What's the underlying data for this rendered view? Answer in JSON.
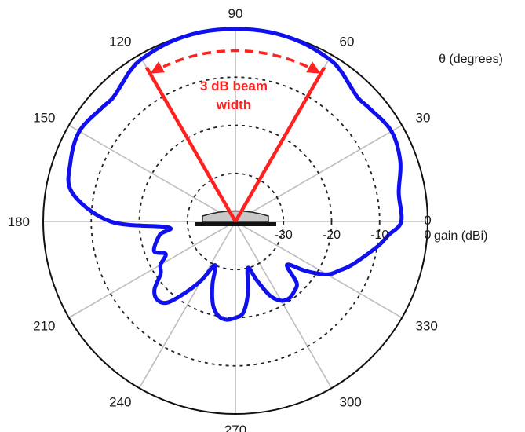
{
  "chart_data": {
    "type": "polar-line",
    "theta_ticks": [
      "0",
      "30",
      "60",
      "90",
      "120",
      "150",
      "180",
      "210",
      "240",
      "270",
      "300",
      "330"
    ],
    "theta_tick_values": [
      0,
      30,
      60,
      90,
      120,
      150,
      180,
      210,
      240,
      270,
      300,
      330
    ],
    "theta_label": "θ (degrees)",
    "r_ticks": [
      {
        "label": "0",
        "value": 0
      },
      {
        "label": "-10",
        "value": -10
      },
      {
        "label": "-20",
        "value": -20
      },
      {
        "label": "-30",
        "value": -30
      }
    ],
    "r_label": "gain (dBi)",
    "r_range": [
      -40,
      0
    ],
    "grid": true,
    "series": [
      {
        "color": "#1010ee",
        "theta": [
          0,
          10,
          20,
          30,
          40,
          45,
          50,
          55,
          60,
          70,
          80,
          90,
          100,
          110,
          120,
          125,
          130,
          135,
          140,
          150,
          160,
          170,
          180,
          185,
          190,
          200,
          205,
          210,
          215,
          220,
          225,
          230,
          235,
          240,
          245,
          250,
          255,
          260,
          265,
          270,
          275,
          280,
          285,
          290,
          295,
          300,
          305,
          310,
          315,
          320,
          325,
          330,
          335,
          340,
          350,
          355
        ],
        "gain": [
          -5.5,
          -5.5,
          -3.5,
          -2.5,
          -3.5,
          -3.8,
          -3.0,
          -1.8,
          -1.0,
          -0.3,
          0,
          0,
          0,
          -0.3,
          -1.0,
          -1.8,
          -3.0,
          -3.8,
          -3.5,
          -2.5,
          -3.5,
          -5.5,
          -14,
          -26,
          -24,
          -22,
          -24,
          -22,
          -21,
          -18,
          -17,
          -18,
          -22,
          -26,
          -30,
          -26,
          -22,
          -20,
          -19.5,
          -20,
          -21,
          -25,
          -30,
          -27,
          -23,
          -21,
          -20.5,
          -21,
          -22,
          -26,
          -22,
          -18,
          -16,
          -14,
          -10,
          -8
        ]
      }
    ],
    "annotations": [
      {
        "text_lines": [
          "3 dB beam",
          "width"
        ],
        "color": "#ff2020",
        "theta_start": 60,
        "theta_end": 120
      }
    ],
    "colors": {
      "pattern": "#1010ee",
      "beamwidth": "#ff2020",
      "rings": "#222222",
      "spokes": "#bdbdbd"
    }
  }
}
